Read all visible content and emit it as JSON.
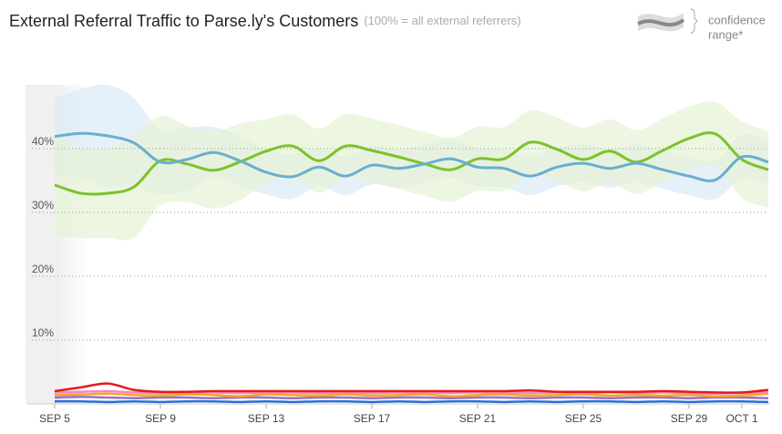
{
  "chart_data": {
    "type": "line",
    "title": "External Referral Traffic to Parse.ly's Customers",
    "subtitle": "(100% = all external referrers)",
    "legend_text": [
      "confidence",
      "range*"
    ],
    "categories": [
      "SEP 5",
      null,
      null,
      null,
      "SEP 9",
      null,
      null,
      null,
      "SEP 13",
      null,
      null,
      null,
      "SEP 17",
      null,
      null,
      null,
      "SEP 21",
      null,
      null,
      null,
      "SEP 25",
      null,
      null,
      null,
      "SEP 29",
      null,
      "OCT 1",
      null
    ],
    "ylim": [
      0,
      50
    ],
    "yticks": [
      {
        "value": 10,
        "label": "10%"
      },
      {
        "value": 20,
        "label": "20%"
      },
      {
        "value": 30,
        "label": "30%"
      },
      {
        "value": 40,
        "label": "40%"
      }
    ],
    "grid": true,
    "series": [
      {
        "color": "#6aaed0",
        "band_color": "#dbe9f5",
        "values": [
          41.9,
          42.4,
          42,
          40.9,
          37.9,
          38.3,
          39.4,
          38.1,
          36.3,
          35.6,
          37.1,
          35.7,
          37.4,
          36.9,
          37.6,
          38.4,
          37.1,
          36.9,
          35.7,
          37.1,
          37.7,
          36.9,
          37.7,
          36.7,
          35.7,
          35.1,
          38.7,
          37.9
        ],
        "ci": [
          6,
          7,
          8,
          7,
          5,
          5,
          4,
          4,
          3.5,
          3.5,
          3,
          3,
          3,
          3,
          3,
          3,
          3,
          3,
          3,
          3,
          3,
          3,
          3,
          3,
          3,
          3,
          3.5,
          3.5
        ]
      },
      {
        "color": "#7dc22b",
        "band_color": "#e6f2d4",
        "values": [
          34.3,
          33,
          33,
          34,
          38.1,
          37.6,
          36.6,
          37.9,
          39.6,
          40.4,
          38.1,
          40.4,
          39.7,
          38.7,
          37.6,
          36.7,
          38.4,
          38.4,
          41,
          39.9,
          38.3,
          39.6,
          37.9,
          39.7,
          41.6,
          42.3,
          38.3,
          36.7
        ],
        "ci": [
          8,
          7,
          7,
          8,
          7,
          6,
          6,
          6,
          5,
          5,
          5,
          5,
          5,
          5,
          5,
          5,
          5,
          5,
          5,
          5,
          5,
          5,
          5,
          5,
          5,
          5,
          6,
          6
        ]
      },
      {
        "color": "#e4191c",
        "values": [
          2,
          2.6,
          3.2,
          2.2,
          1.9,
          1.9,
          2,
          2,
          2,
          2,
          2,
          2,
          2,
          2,
          2,
          2,
          2,
          2,
          2.1,
          1.9,
          1.9,
          1.9,
          1.9,
          2,
          1.9,
          1.8,
          1.8,
          2.2
        ]
      },
      {
        "color": "#f08cc0",
        "values": [
          1.8,
          1.9,
          2,
          1.8,
          1.7,
          1.8,
          1.8,
          1.7,
          1.8,
          1.8,
          1.7,
          1.8,
          1.7,
          1.8,
          1.8,
          1.7,
          1.8,
          1.8,
          1.7,
          1.8,
          1.7,
          1.8,
          1.7,
          1.8,
          1.7,
          1.6,
          1.7,
          1.8
        ]
      },
      {
        "color": "#f5a623",
        "values": [
          1.4,
          1.5,
          1.6,
          1.4,
          1.3,
          1.5,
          1.4,
          1.2,
          1.5,
          1.4,
          1.3,
          1.5,
          1.3,
          1.4,
          1.5,
          1.2,
          1.4,
          1.5,
          1.3,
          1.4,
          1.5,
          1.3,
          1.4,
          1.3,
          1.4,
          1.2,
          1.3,
          1.6
        ]
      },
      {
        "color": "#9b6fc6",
        "values": [
          1,
          1.1,
          1,
          0.9,
          1,
          1,
          0.9,
          1,
          1,
          0.9,
          1,
          1,
          0.9,
          1,
          1,
          0.9,
          1,
          1,
          0.9,
          1,
          1,
          0.9,
          1,
          1,
          0.9,
          1,
          1,
          0.9
        ]
      },
      {
        "color": "#2b6fd6",
        "values": [
          0.4,
          0.4,
          0.3,
          0.4,
          0.3,
          0.4,
          0.4,
          0.3,
          0.4,
          0.3,
          0.4,
          0.4,
          0.3,
          0.4,
          0.3,
          0.4,
          0.4,
          0.3,
          0.4,
          0.3,
          0.4,
          0.4,
          0.3,
          0.4,
          0.3,
          0.4,
          0.4,
          0.3
        ]
      }
    ]
  }
}
